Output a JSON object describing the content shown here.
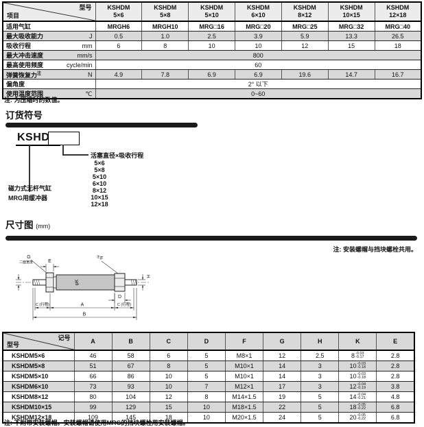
{
  "spec_table": {
    "corner_top": "型号",
    "corner_bottom": "项目",
    "columns": [
      {
        "line1": "KSHDM",
        "line2": "5×6"
      },
      {
        "line1": "KSHDM",
        "line2": "5×8"
      },
      {
        "line1": "KSHDM",
        "line2": "5×10"
      },
      {
        "line1": "KSHDM",
        "line2": "6×10"
      },
      {
        "line1": "KSHDM",
        "line2": "8×12"
      },
      {
        "line1": "KSHDM",
        "line2": "10×15"
      },
      {
        "line1": "KSHDM",
        "line2": "12×18"
      }
    ],
    "rows": [
      {
        "label": "适用气缸",
        "unit": "",
        "bold": true,
        "values": [
          "MRGH6",
          "MRGH10",
          "MRG□16",
          "MRG□20",
          "MRG□25",
          "MRG□32",
          "MRG□40"
        ]
      },
      {
        "label": "最大吸收能力",
        "unit": "J",
        "values": [
          "0.5",
          "1.0",
          "2.5",
          "3.9",
          "5.9",
          "13.3",
          "26.5"
        ]
      },
      {
        "label": "吸收行程",
        "unit": "mm",
        "values": [
          "6",
          "8",
          "10",
          "10",
          "12",
          "15",
          "18"
        ]
      },
      {
        "label": "最大冲击速度",
        "unit": "mm/s",
        "span": "800"
      },
      {
        "label": "最高使用频度",
        "unit": "cycle/min",
        "span": "60"
      },
      {
        "label": "弹簧恢复力",
        "label_sup": "注",
        "unit": "N",
        "values": [
          "4.9",
          "7.8",
          "6.9",
          "6.9",
          "19.6",
          "14.7",
          "16.7"
        ]
      },
      {
        "label": "偏角度",
        "unit": "",
        "span": "2° 以下"
      },
      {
        "label": "使用温度范围",
        "unit": "℃",
        "span": "0~60"
      }
    ],
    "note": "注: 为压缩时的数值。"
  },
  "ordering": {
    "title": "订货符号",
    "code": "KSHDM",
    "left_callout_line1": "磁力式无杆气缸",
    "left_callout_line2": "MRG用缓冲器",
    "right_callout_title": "活塞直径×吸收行程",
    "sizes": [
      "5×6",
      "5×8",
      "5×10",
      "6×10",
      "8×12",
      "10×15",
      "12×18"
    ]
  },
  "dims": {
    "title": "尺寸图",
    "unit": "(mm)",
    "note": "注: 安装螺帽与挡块螺栓共用。",
    "labels": {
      "g": "G",
      "g_sub": "二面宽度",
      "e": "E",
      "f_sup": "注",
      "f": "F",
      "phi_k": "φK",
      "h": "H",
      "d": "D",
      "c_left": "C (行程)",
      "a": "A",
      "c_right": "C (行程)",
      "b": "B"
    }
  },
  "dim_table": {
    "corner_top": "记号",
    "corner_bottom": "型号",
    "headers": [
      "A",
      "B",
      "C",
      "D",
      "F",
      "G",
      "H",
      "K",
      "E"
    ],
    "rows": [
      {
        "model": "KSHDM5×6",
        "a": "46",
        "b": "58",
        "c": "6",
        "d": "5",
        "f": "M8×1",
        "g": "12",
        "h": "2.5",
        "k": {
          "nom": "8",
          "hi": "-0.03",
          "lo": "-0.17"
        },
        "e": "2.8"
      },
      {
        "model": "KSHDM5×8",
        "a": "51",
        "b": "67",
        "c": "8",
        "d": "5",
        "f": "M10×1",
        "g": "14",
        "h": "3",
        "k": {
          "nom": "10",
          "hi": "-0.03",
          "lo": "-0.18"
        },
        "e": "2.8"
      },
      {
        "model": "KSHDM5×10",
        "a": "66",
        "b": "86",
        "c": "10",
        "d": "5",
        "f": "M10×1",
        "g": "14",
        "h": "3",
        "k": {
          "nom": "10",
          "hi": "-0.03",
          "lo": "-0.18"
        },
        "e": "2.8"
      },
      {
        "model": "KSHDM6×10",
        "a": "73",
        "b": "93",
        "c": "10",
        "d": "7",
        "f": "M12×1",
        "g": "17",
        "h": "3",
        "k": {
          "nom": "12",
          "hi": "-0.04",
          "lo": "-0.19"
        },
        "e": "3.8"
      },
      {
        "model": "KSHDM8×12",
        "a": "80",
        "b": "104",
        "c": "12",
        "d": "8",
        "f": "M14×1.5",
        "g": "19",
        "h": "5",
        "k": {
          "nom": "14",
          "hi": "-0.04",
          "lo": "-0.21"
        },
        "e": "4.8"
      },
      {
        "model": "KSHDM10×15",
        "a": "99",
        "b": "129",
        "c": "15",
        "d": "10",
        "f": "M18×1.5",
        "g": "22",
        "h": "5",
        "k": {
          "nom": "18",
          "hi": "-0.05",
          "lo": "-0.22"
        },
        "e": "6.8"
      },
      {
        "model": "KSHDM12×18",
        "a": "109",
        "b": "145",
        "c": "18",
        "d": "10",
        "f": "M20×1.5",
        "g": "24",
        "h": "5",
        "k": {
          "nom": "20",
          "hi": "-0.05",
          "lo": "-0.22"
        },
        "e": "6.8"
      }
    ],
    "note": "注: 不附带安装螺帽。安装螺帽请使用MRG的挡块螺栓用安装螺帽。"
  }
}
